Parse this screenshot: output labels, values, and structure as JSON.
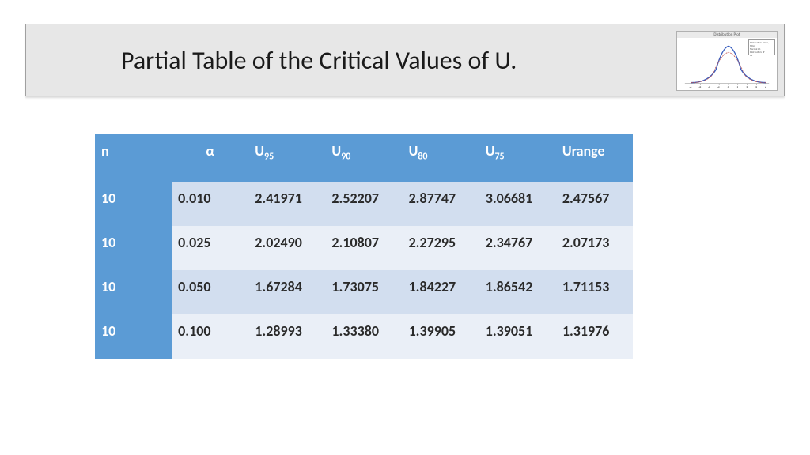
{
  "header": {
    "title": "Partial Table of the Critical Values of U.",
    "background": "#e7e7e7",
    "title_color": "#1a1a1a",
    "title_fontsize": 32
  },
  "thumbnail": {
    "title": "Distribution Plot",
    "curve_color": "#3a5fbf",
    "axis_color": "#888888",
    "legend_lines": [
      "Distribution: Mean, StDev",
      "Normal      0      1",
      "Distribution: df",
      "t                3"
    ]
  },
  "table": {
    "header_bg": "#5b9bd5",
    "row_even_bg": "#d2deef",
    "row_odd_bg": "#eaeff7",
    "rowhead_bg": "#5b9bd5",
    "text_color": "#2a2a2a",
    "columns": [
      {
        "label": "n",
        "sub": ""
      },
      {
        "label": "α",
        "sub": ""
      },
      {
        "label": "U",
        "sub": "95"
      },
      {
        "label": "U",
        "sub": "90"
      },
      {
        "label": "U",
        "sub": "80"
      },
      {
        "label": "U",
        "sub": "75"
      },
      {
        "label": "Urange",
        "sub": ""
      }
    ],
    "rows": [
      [
        "10",
        "0.010",
        "2.41971",
        "2.52207",
        "2.87747",
        "3.06681",
        "2.47567"
      ],
      [
        "10",
        "0.025",
        "2.02490",
        "2.10807",
        "2.27295",
        "2.34767",
        "2.07173"
      ],
      [
        "10",
        "0.050",
        "1.67284",
        "1.73075",
        "1.84227",
        "1.86542",
        "1.71153"
      ],
      [
        "10",
        "0.100",
        "1.28993",
        "1.33380",
        "1.39905",
        "1.39051",
        "1.31976"
      ]
    ]
  }
}
